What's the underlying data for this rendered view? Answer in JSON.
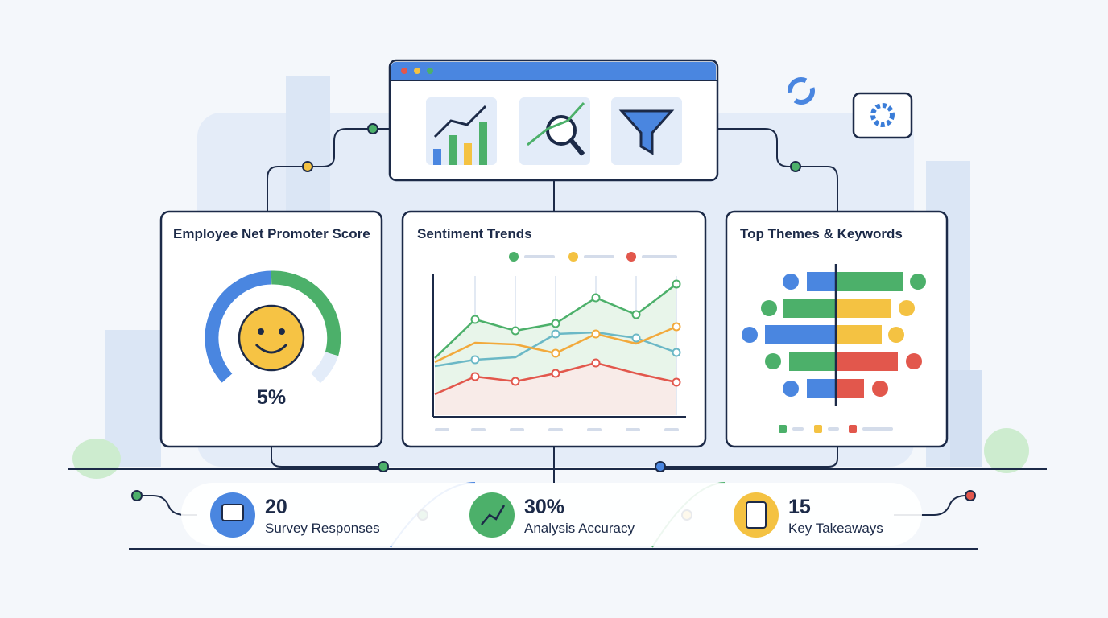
{
  "panels": [
    {
      "title": "Employee Net Promoter Score",
      "value": "5%"
    },
    {
      "title": "Sentiment Trends"
    },
    {
      "title": "Top Themes & Keywords"
    }
  ],
  "stats": [
    {
      "value": "20",
      "label": "Survey Responses"
    },
    {
      "value": "30%",
      "label": "Analysis Accuracy"
    },
    {
      "value": "15",
      "label": "Key Takeaways"
    }
  ]
}
